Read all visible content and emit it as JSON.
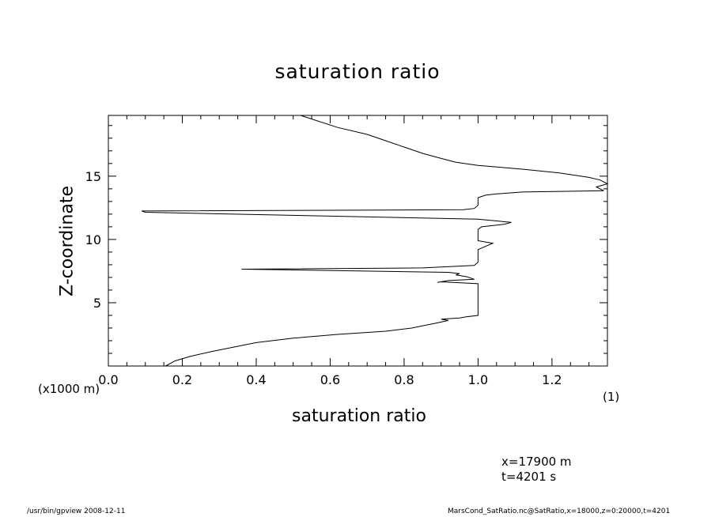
{
  "chart_data": {
    "type": "line",
    "title": "saturation ratio",
    "xlabel": "saturation ratio",
    "ylabel": "Z-coordinate",
    "x_unit_note": "(x1000 m)",
    "y_unit_note": "(1)",
    "xlim": [
      0.0,
      1.35
    ],
    "ylim": [
      0,
      19.8
    ],
    "x_ticks": [
      "0.0",
      "0.2",
      "0.4",
      "0.6",
      "0.8",
      "1.0",
      "1.2"
    ],
    "y_ticks": [
      "5",
      "10",
      "15"
    ],
    "grid": false,
    "legend": "none",
    "series": [
      {
        "points": [
          [
            0.155,
            0.0
          ],
          [
            0.18,
            0.4
          ],
          [
            0.22,
            0.75
          ],
          [
            0.28,
            1.15
          ],
          [
            0.34,
            1.5
          ],
          [
            0.4,
            1.85
          ],
          [
            0.5,
            2.2
          ],
          [
            0.62,
            2.5
          ],
          [
            0.75,
            2.75
          ],
          [
            0.82,
            3.0
          ],
          [
            0.88,
            3.35
          ],
          [
            0.92,
            3.6
          ],
          [
            0.9,
            3.7
          ],
          [
            0.95,
            3.8
          ],
          [
            0.97,
            3.9
          ],
          [
            1.0,
            4.0
          ],
          [
            1.0,
            4.5
          ],
          [
            1.0,
            5.5
          ],
          [
            1.0,
            6.5
          ],
          [
            0.9,
            6.65
          ],
          [
            0.89,
            6.6
          ],
          [
            0.92,
            6.75
          ],
          [
            0.99,
            6.85
          ],
          [
            0.97,
            7.05
          ],
          [
            0.94,
            7.2
          ],
          [
            0.95,
            7.3
          ],
          [
            0.92,
            7.4
          ],
          [
            0.36,
            7.65
          ],
          [
            0.85,
            7.75
          ],
          [
            0.99,
            7.95
          ],
          [
            1.0,
            8.2
          ],
          [
            1.0,
            8.9
          ],
          [
            1.0,
            9.2
          ],
          [
            1.04,
            9.7
          ],
          [
            1.0,
            9.9
          ],
          [
            1.0,
            10.3
          ],
          [
            1.0,
            10.8
          ],
          [
            1.01,
            11.0
          ],
          [
            1.07,
            11.2
          ],
          [
            1.09,
            11.35
          ],
          [
            1.0,
            11.6
          ],
          [
            0.1,
            12.15
          ],
          [
            0.09,
            12.25
          ],
          [
            0.96,
            12.35
          ],
          [
            0.99,
            12.45
          ],
          [
            1.0,
            12.7
          ],
          [
            1.0,
            13.3
          ],
          [
            1.02,
            13.5
          ],
          [
            1.05,
            13.6
          ],
          [
            1.12,
            13.75
          ],
          [
            1.34,
            13.85
          ],
          [
            1.33,
            14.0
          ],
          [
            1.32,
            14.15
          ],
          [
            1.35,
            14.4
          ],
          [
            1.33,
            14.7
          ],
          [
            1.3,
            14.9
          ],
          [
            1.22,
            15.25
          ],
          [
            1.12,
            15.55
          ],
          [
            1.0,
            15.85
          ],
          [
            0.94,
            16.1
          ],
          [
            0.9,
            16.4
          ],
          [
            0.85,
            16.8
          ],
          [
            0.8,
            17.3
          ],
          [
            0.75,
            17.8
          ],
          [
            0.7,
            18.3
          ],
          [
            0.62,
            18.85
          ],
          [
            0.52,
            19.8
          ]
        ]
      }
    ]
  },
  "annotations": {
    "coord_x": "x=17900  m",
    "time": "t=4201  s"
  },
  "footer": {
    "left": "/usr/bin/gpview   2008-12-11",
    "right": "MarsCond_SatRatio.nc@SatRatio,x=18000,z=0:20000,t=4201"
  }
}
